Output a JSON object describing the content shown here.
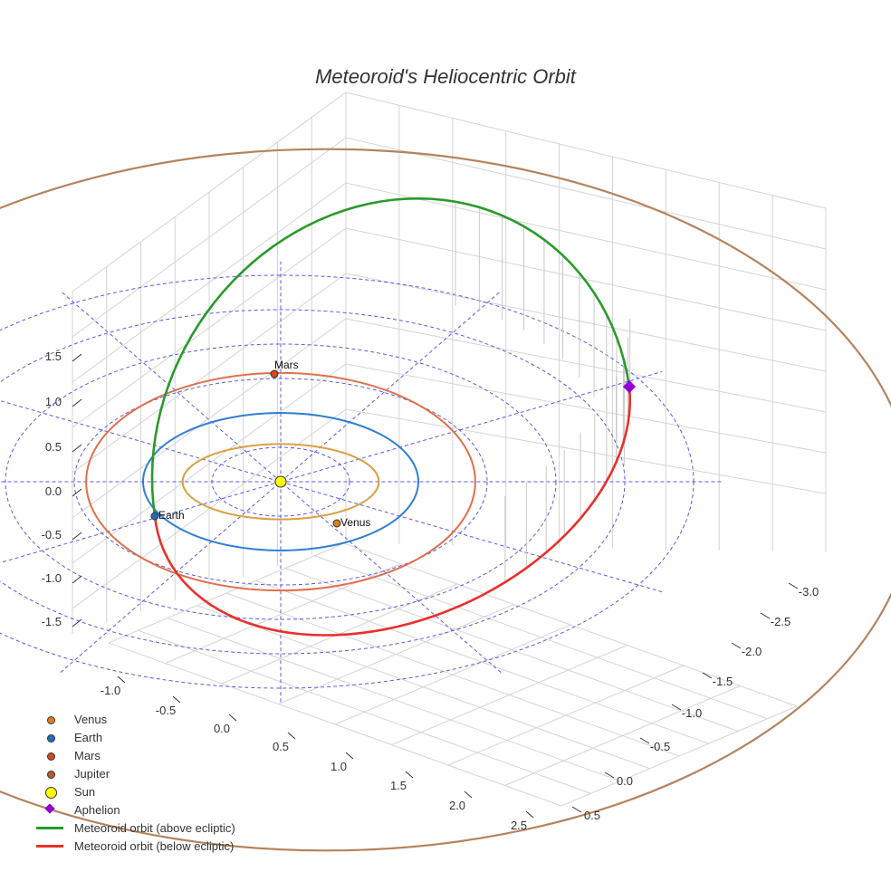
{
  "chart_data": {
    "type": "scatter3d",
    "title": "Meteoroid's Heliocentric Orbit",
    "axes": {
      "x": {
        "range": [
          -1.2,
          2.6
        ],
        "ticks": [
          "-1.0",
          "-0.5",
          "0.0",
          "0.5",
          "1.0",
          "1.5",
          "2.0",
          "2.5"
        ]
      },
      "y": {
        "range": [
          -3.1,
          0.6
        ],
        "ticks": [
          "-3.0",
          "-2.5",
          "-2.0",
          "-1.5",
          "-1.0",
          "-0.5",
          "0.0",
          "0.5"
        ]
      },
      "z": {
        "range": [
          -1.8,
          1.8
        ],
        "ticks": [
          "-1.5",
          "-1.0",
          "-0.5",
          "0.0",
          "0.5",
          "1.0",
          "1.5"
        ]
      },
      "grid": true
    },
    "planet_orbits": [
      {
        "name": "Venus",
        "radius_au": 0.72,
        "color": "#d9a043"
      },
      {
        "name": "Earth",
        "radius_au": 1.0,
        "color": "#2f7fd1"
      },
      {
        "name": "Mars",
        "radius_au": 1.52,
        "color": "#e0704a"
      },
      {
        "name": "Jupiter",
        "radius_au": 5.2,
        "color": "#b5835e"
      }
    ],
    "points": [
      {
        "name": "Venus",
        "label": "Venus",
        "x": 0.36,
        "y": 0.62,
        "z": 0.0,
        "color": "#d97f1a"
      },
      {
        "name": "Earth",
        "label": "Earth",
        "x": -0.96,
        "y": -0.28,
        "z": 0.0,
        "color": "#1f6fb5"
      },
      {
        "name": "Mars",
        "label": "Mars",
        "x": -0.05,
        "y": -1.52,
        "z": 0.0,
        "color": "#d2491e"
      },
      {
        "name": "Jupiter",
        "label": "",
        "x": 0,
        "y": 0,
        "z": 0,
        "color": "#b05e2e"
      },
      {
        "name": "Sun",
        "label": "",
        "x": 0.0,
        "y": 0.0,
        "z": 0.0,
        "color": "#ffff00"
      },
      {
        "name": "Aphelion",
        "label": "",
        "x": 2.4,
        "y": -2.6,
        "z": 0.0,
        "color": "#9400d3"
      }
    ],
    "series": [
      {
        "name": "Meteoroid orbit (above ecliptic)",
        "color": "#2a9a2a"
      },
      {
        "name": "Meteoroid orbit (below ecliptic)",
        "color": "#e8302b"
      }
    ],
    "legend_position": "bottom-left"
  },
  "legend": [
    {
      "label": "Venus",
      "kind": "dot",
      "color": "#d97f1a",
      "size": "small"
    },
    {
      "label": "Earth",
      "kind": "dot",
      "color": "#1f6fb5",
      "size": "small"
    },
    {
      "label": "Mars",
      "kind": "dot",
      "color": "#d2491e",
      "size": "small"
    },
    {
      "label": "Jupiter",
      "kind": "dot",
      "color": "#b05e2e",
      "size": "small"
    },
    {
      "label": "Sun",
      "kind": "dot",
      "color": "#ffff00",
      "size": "large"
    },
    {
      "label": "Aphelion",
      "kind": "diamond",
      "color": "#9400d3"
    },
    {
      "label": "Meteoroid orbit (above ecliptic)",
      "kind": "line",
      "color": "#2a9a2a"
    },
    {
      "label": "Meteoroid orbit (below ecliptic)",
      "kind": "line",
      "color": "#e8302b"
    }
  ]
}
